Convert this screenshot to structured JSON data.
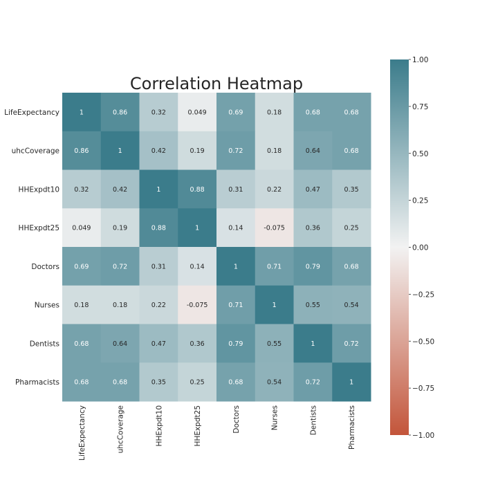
{
  "chart_data": {
    "type": "heatmap",
    "title": "Correlation Heatmap",
    "xlabel": "",
    "ylabel": "",
    "labels": [
      "LifeExpectancy",
      "uhcCoverage",
      "HHExpdt10",
      "HHExpdt25",
      "Doctors",
      "Nurses",
      "Dentists",
      "Pharmacists"
    ],
    "values": [
      [
        1,
        0.86,
        0.32,
        0.049,
        0.69,
        0.18,
        0.68,
        0.68
      ],
      [
        0.86,
        1,
        0.42,
        0.19,
        0.72,
        0.18,
        0.64,
        0.68
      ],
      [
        0.32,
        0.42,
        1,
        0.88,
        0.31,
        0.22,
        0.47,
        0.35
      ],
      [
        0.049,
        0.19,
        0.88,
        1,
        0.14,
        -0.075,
        0.36,
        0.25
      ],
      [
        0.69,
        0.72,
        0.31,
        0.14,
        1,
        0.71,
        0.79,
        0.68
      ],
      [
        0.18,
        0.18,
        0.22,
        -0.075,
        0.71,
        1,
        0.55,
        0.54
      ],
      [
        0.68,
        0.64,
        0.47,
        0.36,
        0.79,
        0.55,
        1,
        0.72
      ],
      [
        0.68,
        0.68,
        0.35,
        0.25,
        0.68,
        0.54,
        0.72,
        1
      ]
    ],
    "cell_labels": [
      [
        "1",
        "0.86",
        "0.32",
        "0.049",
        "0.69",
        "0.18",
        "0.68",
        "0.68"
      ],
      [
        "0.86",
        "1",
        "0.42",
        "0.19",
        "0.72",
        "0.18",
        "0.64",
        "0.68"
      ],
      [
        "0.32",
        "0.42",
        "1",
        "0.88",
        "0.31",
        "0.22",
        "0.47",
        "0.35"
      ],
      [
        "0.049",
        "0.19",
        "0.88",
        "1",
        "0.14",
        "-0.075",
        "0.36",
        "0.25"
      ],
      [
        "0.69",
        "0.72",
        "0.31",
        "0.14",
        "1",
        "0.71",
        "0.79",
        "0.68"
      ],
      [
        "0.18",
        "0.18",
        "0.22",
        "-0.075",
        "0.71",
        "1",
        "0.55",
        "0.54"
      ],
      [
        "0.68",
        "0.64",
        "0.47",
        "0.36",
        "0.79",
        "0.55",
        "1",
        "0.72"
      ],
      [
        "0.68",
        "0.68",
        "0.35",
        "0.25",
        "0.68",
        "0.54",
        "0.72",
        "1"
      ]
    ],
    "vmin": -1,
    "vmax": 1,
    "grid": false,
    "colormap": {
      "negative": "#c3553a",
      "center": "#f2f2f2",
      "positive": "#3b7c8b"
    },
    "colorbar": {
      "ticks": [
        1.0,
        0.75,
        0.5,
        0.25,
        0.0,
        -0.25,
        -0.5,
        -0.75,
        -1.0
      ],
      "tick_labels": [
        "1.00",
        "0.75",
        "0.50",
        "0.25",
        "0.00",
        "−0.25",
        "−0.50",
        "−0.75",
        "−1.00"
      ]
    }
  }
}
